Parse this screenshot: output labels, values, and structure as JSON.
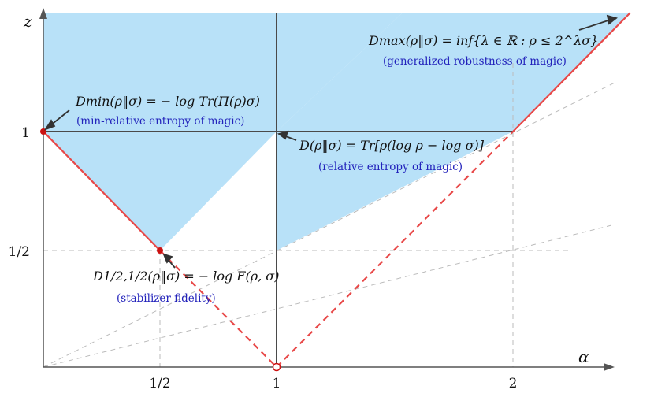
{
  "axes": {
    "x_label": "α",
    "y_label": "z",
    "x_ticks": [
      "1/2",
      "1",
      "2"
    ],
    "y_ticks": [
      "1",
      "1/2"
    ]
  },
  "annotations": {
    "dmin_formula": "Dmin(ρ‖σ) = − log Tr(Π(ρ)σ)",
    "dmin_caption": "(min-relative entropy of magic)",
    "dmax_formula": "Dmax(ρ‖σ) = inf{λ ∈ ℝ : ρ ≤ 2^λσ}",
    "dmax_caption": "(generalized robustness of magic)",
    "d_formula": "D(ρ‖σ) = Tr[ρ(log ρ − log σ)]",
    "d_caption": "(relative entropy of magic)",
    "dhalf_formula": "D1/2,1/2(ρ‖σ) = − log F(ρ, σ)",
    "dhalf_caption": "(stabilizer fidelity)"
  },
  "colors": {
    "region_fill": "#b8e1f8",
    "boundary_line": "#e84848",
    "axis_line": "#555555",
    "caption_text": "#2222bb",
    "dashed_grid": "#bbbbbb"
  }
}
